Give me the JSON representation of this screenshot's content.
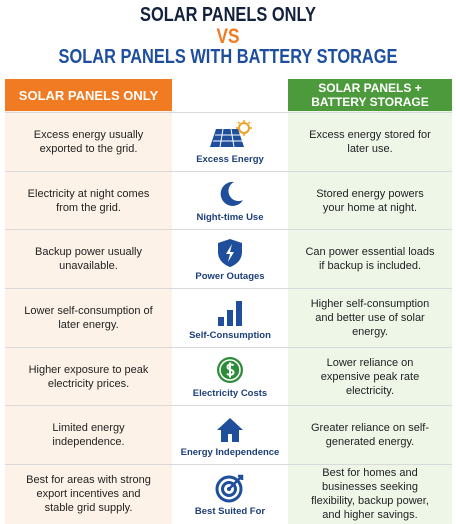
{
  "title": {
    "line1": "SOLAR PANELS ONLY",
    "vs": "VS",
    "line2": "SOLAR PANELS WITH BATTERY STORAGE"
  },
  "header": {
    "left": "SOLAR PANELS ONLY",
    "right": "SOLAR PANELS + BATTERY STORAGE"
  },
  "rows": [
    {
      "left": "Excess energy usually exported to the grid.",
      "label": "Excess Energy",
      "right": "Excess energy stored for later use."
    },
    {
      "left": "Electricity at night comes from the grid.",
      "label": "Night-time Use",
      "right": "Stored energy powers your home at night."
    },
    {
      "left": "Backup power usually unavailable.",
      "label": "Power Outages",
      "right": "Can power essential loads if backup is included."
    },
    {
      "left": "Lower self-consumption of later energy.",
      "label": "Self-Consumption",
      "right": "Higher self-consumption and better use of solar energy."
    },
    {
      "left": "Higher exposure to peak electricity prices.",
      "label": "Electricity Costs",
      "right": "Lower reliance on expensive peak rate electricity."
    },
    {
      "left": "Limited energy independence.",
      "label": "Energy Independence",
      "right": "Greater reliance on self-generated energy."
    },
    {
      "left": "Best for areas with strong export incentives and stable grid supply.",
      "label": "Best Suited For",
      "right": "Best for homes and businesses seeking flexibility, backup power, and higher savings."
    }
  ]
}
